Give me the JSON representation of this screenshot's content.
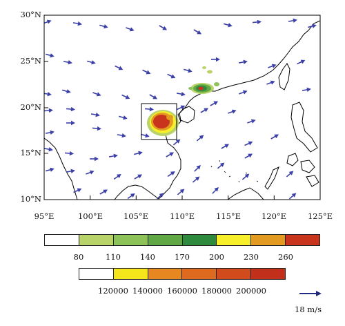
{
  "map": {
    "lat_labels": [
      "30°N",
      "25°N",
      "20°N",
      "15°N",
      "10°N"
    ],
    "lon_labels": [
      "95°E",
      "100°E",
      "105°E",
      "110°E",
      "115°E",
      "120°E",
      "125°E"
    ],
    "lon_range": [
      95,
      125
    ],
    "lat_range": [
      10,
      30
    ],
    "wind_vector_color": "#3b3fa8",
    "coastline_color": "#000000",
    "box_region": {
      "lon": [
        105.5,
        109.5
      ],
      "lat": [
        16.6,
        20.5
      ]
    }
  },
  "legend_1": {
    "colors": [
      "#ffffff",
      "#b7d36a",
      "#8cc258",
      "#5fa843",
      "#2e8b3e",
      "#f7ef2a",
      "#e39a21",
      "#c9341d"
    ],
    "ticks": [
      "80",
      "110",
      "140",
      "170",
      "200",
      "230",
      "260"
    ]
  },
  "legend_2": {
    "colors": [
      "#ffffff",
      "#f5e61c",
      "#e6881f",
      "#dd6a1f",
      "#d24b1d",
      "#c2301c"
    ],
    "ticks": [
      "120000",
      "140000",
      "160000",
      "180000",
      "200000"
    ]
  },
  "reference_vector": {
    "label": "18 m/s",
    "color": "#1f2a80"
  }
}
